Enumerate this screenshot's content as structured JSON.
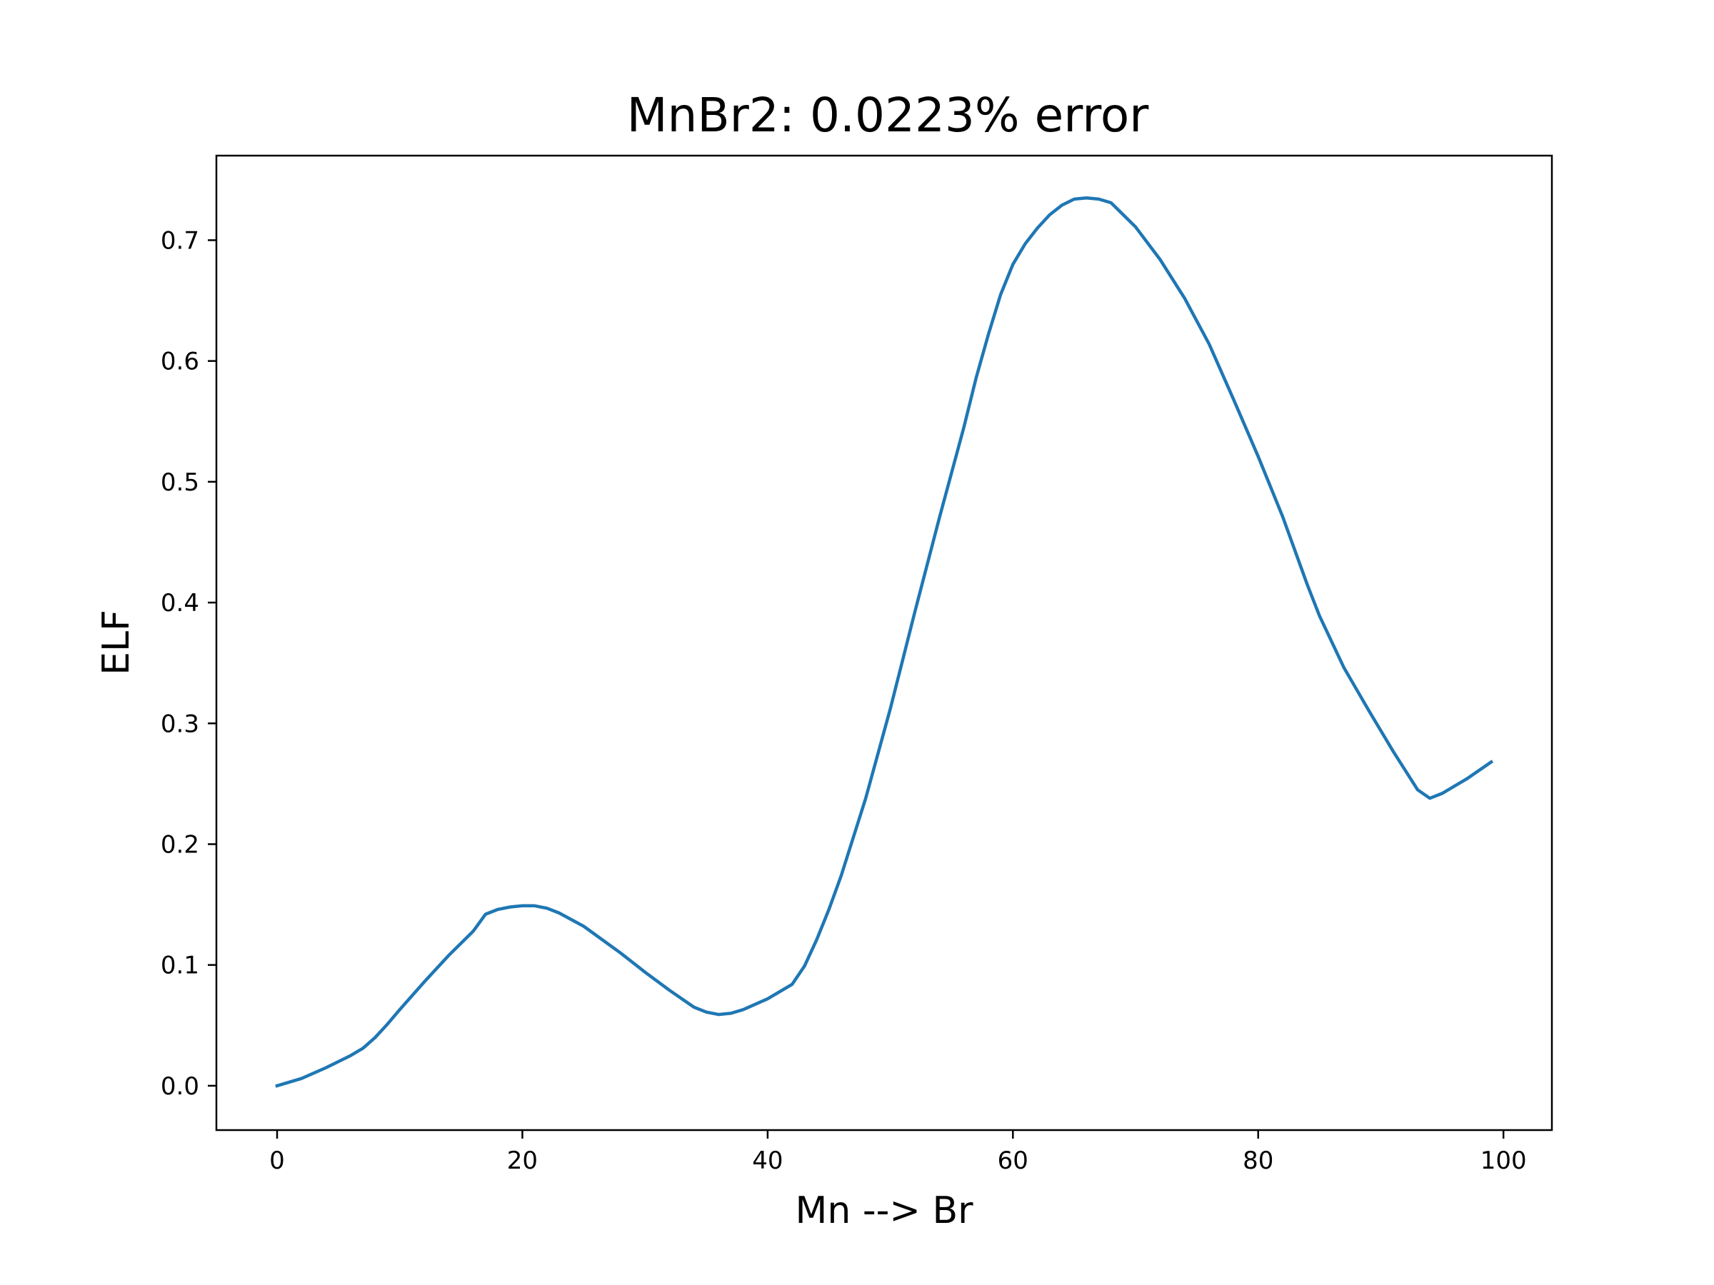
{
  "chart_data": {
    "type": "line",
    "title": "MnBr2: 0.0223% error",
    "xlabel": "Mn --> Br",
    "ylabel": "ELF",
    "xlim": [
      -4.95,
      103.95
    ],
    "ylim": [
      -0.0367,
      0.77
    ],
    "xticks": [
      0,
      20,
      40,
      60,
      80,
      100
    ],
    "xtick_labels": [
      "0",
      "20",
      "40",
      "60",
      "80",
      "100"
    ],
    "yticks": [
      0.0,
      0.1,
      0.2,
      0.3,
      0.4,
      0.5,
      0.6,
      0.7
    ],
    "ytick_labels": [
      "0.0",
      "0.1",
      "0.2",
      "0.3",
      "0.4",
      "0.5",
      "0.6",
      "0.7"
    ],
    "grid": false,
    "series": [
      {
        "color": "#1f77b4",
        "x": [
          0,
          2,
          4,
          6,
          7,
          8,
          9,
          10,
          12,
          14,
          16,
          17,
          18,
          19,
          20,
          21,
          22,
          23,
          25,
          28,
          30,
          32,
          34,
          35,
          36,
          37,
          38,
          40,
          42,
          43,
          44,
          45,
          46,
          48,
          50,
          52,
          54,
          56,
          57,
          58,
          59,
          60,
          61,
          62,
          63,
          64,
          65,
          66,
          67,
          68,
          70,
          72,
          74,
          76,
          78,
          80,
          82,
          84,
          85,
          87,
          89,
          91,
          93,
          94,
          95,
          97,
          99
        ],
        "y": [
          0.0,
          0.006,
          0.015,
          0.025,
          0.031,
          0.04,
          0.051,
          0.063,
          0.086,
          0.108,
          0.128,
          0.142,
          0.146,
          0.148,
          0.149,
          0.149,
          0.147,
          0.143,
          0.132,
          0.11,
          0.094,
          0.079,
          0.065,
          0.061,
          0.059,
          0.06,
          0.063,
          0.072,
          0.084,
          0.099,
          0.121,
          0.146,
          0.174,
          0.238,
          0.312,
          0.392,
          0.47,
          0.545,
          0.586,
          0.622,
          0.655,
          0.68,
          0.697,
          0.71,
          0.721,
          0.729,
          0.734,
          0.735,
          0.734,
          0.731,
          0.711,
          0.684,
          0.652,
          0.614,
          0.568,
          0.521,
          0.471,
          0.415,
          0.389,
          0.346,
          0.311,
          0.277,
          0.245,
          0.238,
          0.242,
          0.254,
          0.268
        ]
      }
    ]
  }
}
